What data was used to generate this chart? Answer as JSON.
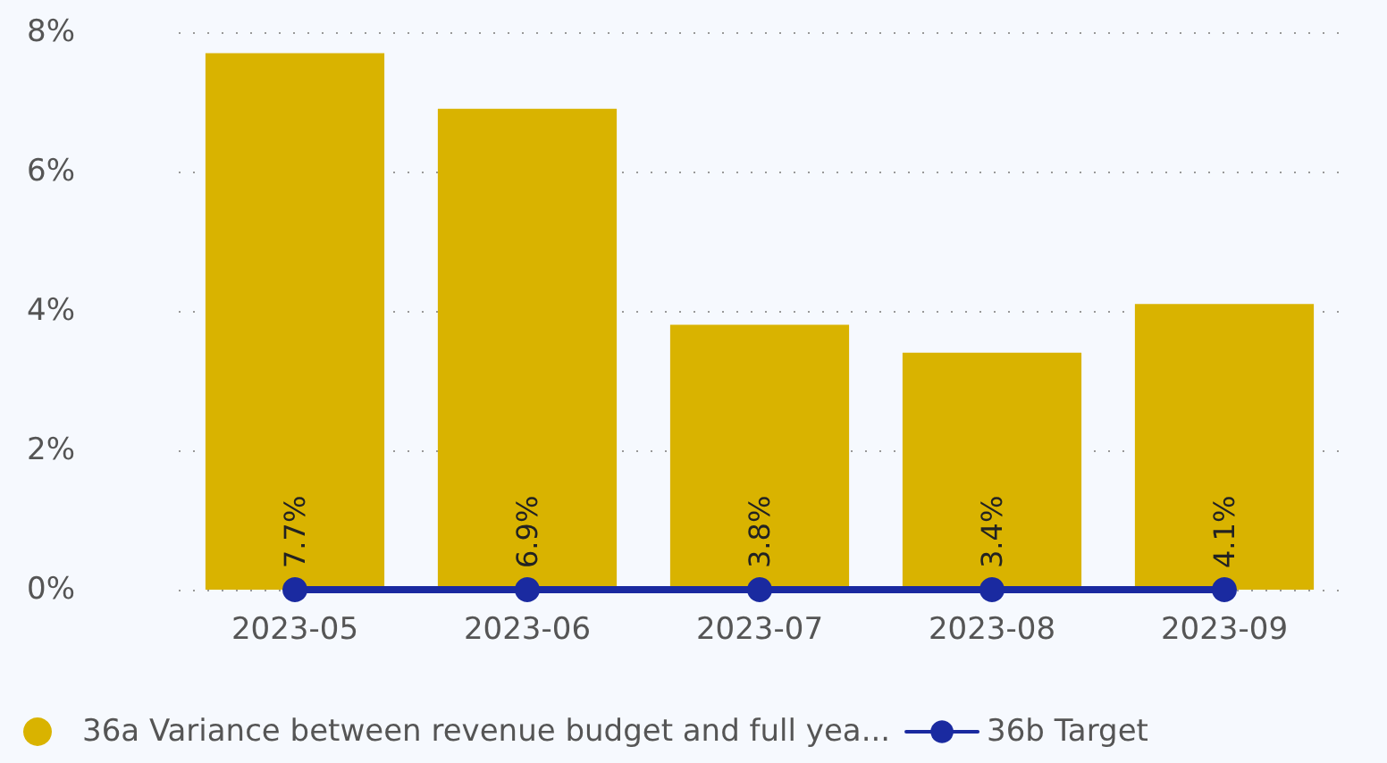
{
  "chart_data": {
    "type": "bar",
    "categories": [
      "2023-05",
      "2023-06",
      "2023-07",
      "2023-08",
      "2023-09"
    ],
    "series": [
      {
        "name": "36a Variance between revenue budget and full yea...",
        "color": "#d9b300",
        "values": [
          7.7,
          6.9,
          3.8,
          3.4,
          4.1
        ],
        "value_labels": [
          "7.7%",
          "6.9%",
          "3.8%",
          "3.4%",
          "4.1%"
        ]
      },
      {
        "name": "36b Target",
        "type": "line",
        "color": "#1a2aa0",
        "values": [
          0,
          0,
          0,
          0,
          0
        ],
        "marker": "circle",
        "line_style": "solid"
      }
    ],
    "ylim": [
      0,
      8
    ],
    "yticks": [
      {
        "value": 0,
        "label": "0%"
      },
      {
        "value": 2,
        "label": "2%"
      },
      {
        "value": 4,
        "label": "4%"
      },
      {
        "value": 6,
        "label": "6%"
      },
      {
        "value": 8,
        "label": "8%"
      }
    ],
    "grid": "y",
    "legend": "bottom left"
  }
}
